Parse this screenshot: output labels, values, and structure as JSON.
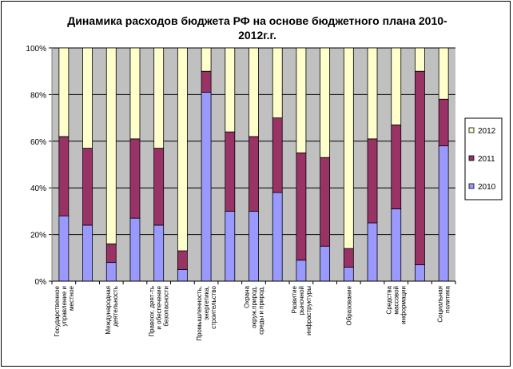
{
  "chart_data": {
    "type": "bar",
    "stacked": "percent",
    "title": "Динамика расходов бюджета РФ на основе бюджетного плана 2010-2012г.г.",
    "title_lines": [
      "Динамика расходов бюджета РФ на основе бюджетного плана 2010-",
      "2012г.г."
    ],
    "ylim": [
      0,
      100
    ],
    "yticks": [
      "0%",
      "20%",
      "40%",
      "60%",
      "80%",
      "100%"
    ],
    "grid": true,
    "legend_position": "right",
    "plot_background": "#c0c0c0",
    "categories": [
      "Государственное управление и местное",
      "",
      "Международная деятельность",
      "",
      "Правоох. деят-ть и обеспечение безопасности",
      "",
      "Промышленность, энергетика, строительство",
      "",
      "Охрана окруж.природ. среды и природ.",
      "",
      "Развитие рыночной инфраструктуры",
      "",
      "Образование",
      "",
      "Средства массовой информации",
      "",
      "Социальная политика"
    ],
    "category_lines": [
      [
        "Государственное",
        "управление и",
        "местное"
      ],
      [],
      [
        "Международная",
        "деятельность"
      ],
      [],
      [
        "Правоох. деят-ть",
        "и обеспечение",
        "безопасности"
      ],
      [],
      [
        "Промышленность,",
        "энергетика,",
        "строительство"
      ],
      [],
      [
        "Охрана",
        "окруж.природ.",
        "среды и природ."
      ],
      [],
      [
        "Развитие",
        "рыночной",
        "инфраструктуры"
      ],
      [],
      [
        "Образование"
      ],
      [],
      [
        "Средства",
        "массовой",
        "информации"
      ],
      [],
      [
        "Социальная",
        "политика"
      ]
    ],
    "series": [
      {
        "name": "2010",
        "color": "#9999ff",
        "values": [
          28,
          24,
          8,
          27,
          24,
          5,
          81,
          30,
          30,
          38,
          9,
          15,
          6,
          25,
          31,
          7,
          58
        ]
      },
      {
        "name": "2011",
        "color": "#993366",
        "values": [
          34,
          33,
          8,
          34,
          33,
          8,
          9,
          34,
          32,
          32,
          46,
          38,
          8,
          36,
          36,
          83,
          20
        ]
      },
      {
        "name": "2012",
        "color": "#ffffcc",
        "values": [
          38,
          43,
          84,
          39,
          43,
          87,
          10,
          36,
          38,
          30,
          45,
          47,
          86,
          39,
          33,
          10,
          22
        ]
      }
    ],
    "legend_order": [
      "2012",
      "2011",
      "2010"
    ]
  }
}
